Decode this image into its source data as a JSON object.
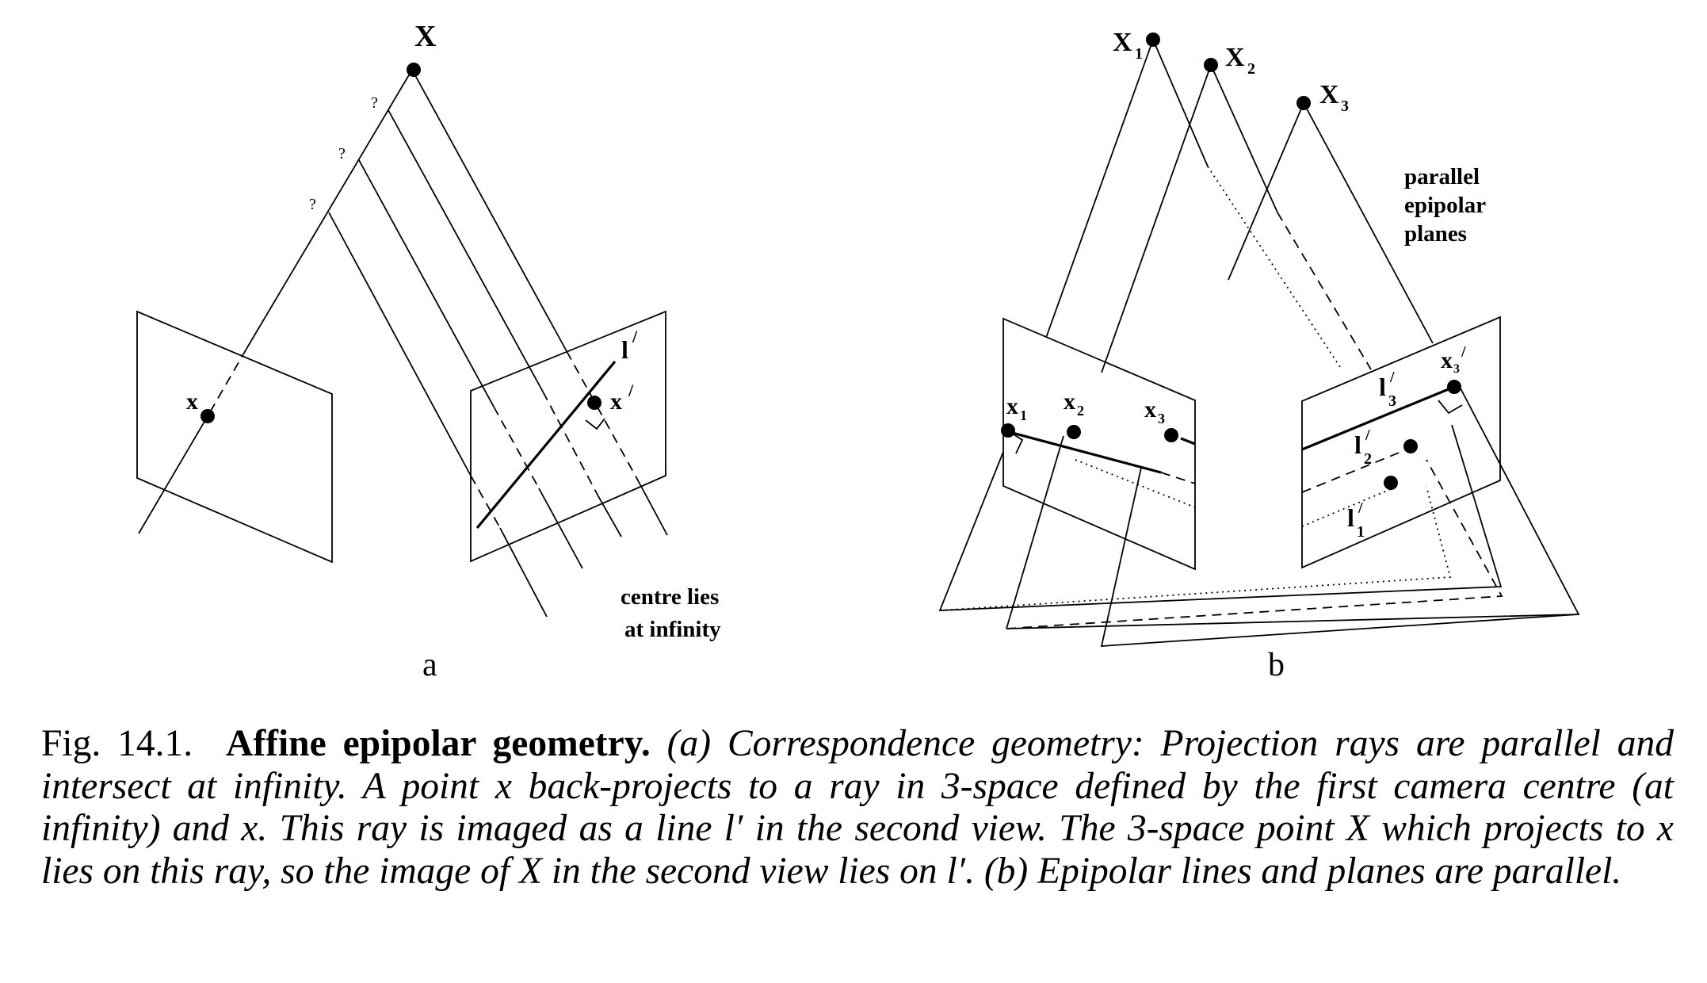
{
  "figure_a": {
    "point_X": "X",
    "point_x": "x",
    "point_x_prime": "x",
    "prime_mark": "/",
    "line_l_prime": "l",
    "question_marks": [
      "?",
      "?",
      "?"
    ],
    "note_line1": "centre lies",
    "note_line2": "at infinity",
    "panel_label": "a"
  },
  "figure_b": {
    "points_X": [
      {
        "base": "X",
        "sub": "1"
      },
      {
        "base": "X",
        "sub": "2"
      },
      {
        "base": "X",
        "sub": "3"
      }
    ],
    "points_x": [
      {
        "base": "x",
        "sub": "1"
      },
      {
        "base": "x",
        "sub": "2"
      },
      {
        "base": "x",
        "sub": "3"
      }
    ],
    "point_x3_prime": {
      "base": "x",
      "sub": "3",
      "prime": "/"
    },
    "lines_l_prime": [
      {
        "base": "l",
        "sub": "3",
        "prime": "/"
      },
      {
        "base": "l",
        "sub": "2",
        "prime": "/"
      },
      {
        "base": "l",
        "sub": "1",
        "prime": "/"
      }
    ],
    "note_line1": "parallel",
    "note_line2": "epipolar",
    "note_line3": "planes",
    "panel_label": "b"
  },
  "caption": {
    "lead": "Fig. 14.1.",
    "heading": "Affine epipolar geometry.",
    "text": "(a) Correspondence geometry: Projection rays are parallel and intersect at infinity. A point x back-projects to a ray in 3-space defined by the first camera centre (at infinity) and x. This ray is imaged as a line l′ in the second view. The 3-space point X which projects to x lies on this ray, so the image of X in the second view lies on l′. (b) Epipolar lines and planes are parallel."
  }
}
